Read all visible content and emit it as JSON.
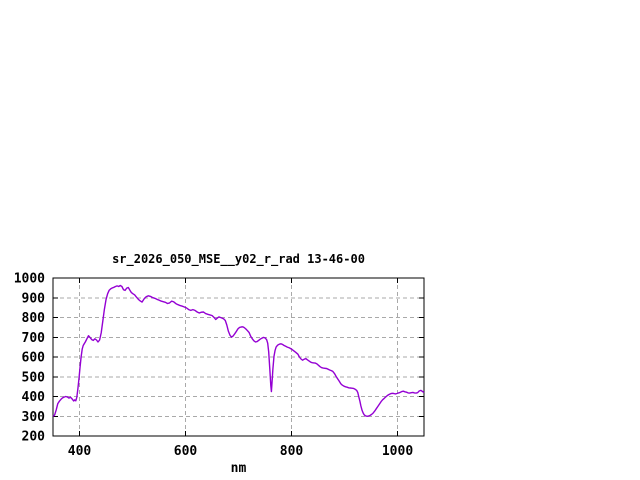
{
  "window": {
    "background": "#ffffff"
  },
  "chart_data": {
    "type": "line",
    "title": "sr_2026_050_MSE__y02_r_rad 13-46-00",
    "xlabel": "nm",
    "ylabel": "",
    "xlim": [
      350,
      1050
    ],
    "ylim": [
      200,
      1000
    ],
    "x_ticks": [
      400,
      600,
      800,
      1000
    ],
    "y_ticks": [
      200,
      300,
      400,
      500,
      600,
      700,
      800,
      900,
      1000
    ],
    "grid": true,
    "legend": "none",
    "line_color": "#9400d3",
    "grid_color": "#a9a9a9",
    "border_color": "#000000",
    "text_color": "#000000",
    "series": [
      {
        "points": [
          [
            350,
            300
          ],
          [
            353,
            306
          ],
          [
            356,
            332
          ],
          [
            359,
            364
          ],
          [
            362,
            376
          ],
          [
            365,
            386
          ],
          [
            368,
            393
          ],
          [
            371,
            397
          ],
          [
            374,
            400
          ],
          [
            377,
            398
          ],
          [
            380,
            392
          ],
          [
            383,
            396
          ],
          [
            386,
            388
          ],
          [
            389,
            377
          ],
          [
            391,
            383
          ],
          [
            393,
            378
          ],
          [
            395,
            396
          ],
          [
            397,
            440
          ],
          [
            399,
            492
          ],
          [
            401,
            546
          ],
          [
            403,
            600
          ],
          [
            405,
            640
          ],
          [
            407,
            658
          ],
          [
            409,
            668
          ],
          [
            411,
            676
          ],
          [
            414,
            692
          ],
          [
            417,
            708
          ],
          [
            420,
            698
          ],
          [
            423,
            688
          ],
          [
            426,
            684
          ],
          [
            429,
            692
          ],
          [
            432,
            686
          ],
          [
            435,
            676
          ],
          [
            438,
            686
          ],
          [
            441,
            722
          ],
          [
            444,
            782
          ],
          [
            447,
            842
          ],
          [
            450,
            890
          ],
          [
            453,
            920
          ],
          [
            456,
            938
          ],
          [
            459,
            946
          ],
          [
            462,
            950
          ],
          [
            465,
            953
          ],
          [
            468,
            957
          ],
          [
            471,
            960
          ],
          [
            474,
            957
          ],
          [
            477,
            962
          ],
          [
            480,
            957
          ],
          [
            483,
            941
          ],
          [
            486,
            937
          ],
          [
            489,
            949
          ],
          [
            492,
            952
          ],
          [
            495,
            938
          ],
          [
            498,
            926
          ],
          [
            501,
            920
          ],
          [
            504,
            915
          ],
          [
            507,
            905
          ],
          [
            510,
            895
          ],
          [
            514,
            885
          ],
          [
            518,
            878
          ],
          [
            522,
            895
          ],
          [
            526,
            906
          ],
          [
            530,
            910
          ],
          [
            534,
            907
          ],
          [
            538,
            901
          ],
          [
            542,
            897
          ],
          [
            546,
            892
          ],
          [
            550,
            888
          ],
          [
            554,
            883
          ],
          [
            558,
            880
          ],
          [
            562,
            877
          ],
          [
            566,
            871
          ],
          [
            570,
            874
          ],
          [
            574,
            883
          ],
          [
            578,
            879
          ],
          [
            582,
            870
          ],
          [
            586,
            865
          ],
          [
            590,
            860
          ],
          [
            594,
            857
          ],
          [
            598,
            853
          ],
          [
            602,
            848
          ],
          [
            606,
            840
          ],
          [
            610,
            836
          ],
          [
            614,
            840
          ],
          [
            618,
            836
          ],
          [
            622,
            828
          ],
          [
            626,
            823
          ],
          [
            630,
            827
          ],
          [
            634,
            828
          ],
          [
            638,
            820
          ],
          [
            642,
            816
          ],
          [
            646,
            813
          ],
          [
            650,
            810
          ],
          [
            654,
            800
          ],
          [
            657,
            790
          ],
          [
            660,
            797
          ],
          [
            663,
            803
          ],
          [
            666,
            800
          ],
          [
            669,
            797
          ],
          [
            672,
            793
          ],
          [
            675,
            785
          ],
          [
            678,
            762
          ],
          [
            681,
            730
          ],
          [
            684,
            710
          ],
          [
            687,
            701
          ],
          [
            690,
            707
          ],
          [
            693,
            718
          ],
          [
            696,
            730
          ],
          [
            699,
            743
          ],
          [
            702,
            750
          ],
          [
            705,
            752
          ],
          [
            708,
            753
          ],
          [
            711,
            749
          ],
          [
            714,
            742
          ],
          [
            717,
            733
          ],
          [
            720,
            724
          ],
          [
            723,
            705
          ],
          [
            726,
            692
          ],
          [
            729,
            682
          ],
          [
            732,
            676
          ],
          [
            735,
            678
          ],
          [
            738,
            684
          ],
          [
            741,
            690
          ],
          [
            744,
            695
          ],
          [
            747,
            699
          ],
          [
            750,
            697
          ],
          [
            753,
            688
          ],
          [
            755,
            670
          ],
          [
            757,
            626
          ],
          [
            759,
            540
          ],
          [
            761,
            455
          ],
          [
            762,
            425
          ],
          [
            763,
            462
          ],
          [
            765,
            540
          ],
          [
            767,
            604
          ],
          [
            769,
            634
          ],
          [
            771,
            650
          ],
          [
            774,
            660
          ],
          [
            777,
            665
          ],
          [
            780,
            667
          ],
          [
            783,
            664
          ],
          [
            786,
            658
          ],
          [
            789,
            654
          ],
          [
            792,
            650
          ],
          [
            796,
            646
          ],
          [
            800,
            640
          ],
          [
            804,
            632
          ],
          [
            808,
            624
          ],
          [
            812,
            614
          ],
          [
            815,
            600
          ],
          [
            818,
            590
          ],
          [
            821,
            584
          ],
          [
            824,
            589
          ],
          [
            827,
            592
          ],
          [
            830,
            586
          ],
          [
            833,
            580
          ],
          [
            836,
            574
          ],
          [
            839,
            571
          ],
          [
            842,
            570
          ],
          [
            845,
            569
          ],
          [
            848,
            565
          ],
          [
            851,
            558
          ],
          [
            854,
            551
          ],
          [
            857,
            546
          ],
          [
            860,
            544
          ],
          [
            863,
            543
          ],
          [
            866,
            542
          ],
          [
            869,
            538
          ],
          [
            872,
            534
          ],
          [
            875,
            531
          ],
          [
            878,
            527
          ],
          [
            881,
            517
          ],
          [
            884,
            503
          ],
          [
            887,
            490
          ],
          [
            890,
            478
          ],
          [
            893,
            465
          ],
          [
            896,
            457
          ],
          [
            899,
            452
          ],
          [
            902,
            449
          ],
          [
            905,
            447
          ],
          [
            908,
            444
          ],
          [
            911,
            443
          ],
          [
            914,
            442
          ],
          [
            917,
            441
          ],
          [
            920,
            437
          ],
          [
            923,
            431
          ],
          [
            925,
            420
          ],
          [
            927,
            398
          ],
          [
            929,
            376
          ],
          [
            931,
            352
          ],
          [
            933,
            331
          ],
          [
            935,
            317
          ],
          [
            937,
            308
          ],
          [
            939,
            303
          ],
          [
            941,
            301
          ],
          [
            943,
            300
          ],
          [
            945,
            301
          ],
          [
            948,
            304
          ],
          [
            951,
            309
          ],
          [
            954,
            316
          ],
          [
            957,
            326
          ],
          [
            960,
            338
          ],
          [
            963,
            350
          ],
          [
            966,
            362
          ],
          [
            969,
            374
          ],
          [
            972,
            384
          ],
          [
            975,
            391
          ],
          [
            978,
            398
          ],
          [
            981,
            405
          ],
          [
            984,
            410
          ],
          [
            987,
            414
          ],
          [
            990,
            416
          ],
          [
            993,
            415
          ],
          [
            996,
            413
          ],
          [
            999,
            415
          ],
          [
            1002,
            418
          ],
          [
            1005,
            421
          ],
          [
            1008,
            425
          ],
          [
            1011,
            427
          ],
          [
            1014,
            424
          ],
          [
            1017,
            422
          ],
          [
            1020,
            418
          ],
          [
            1023,
            417
          ],
          [
            1026,
            419
          ],
          [
            1029,
            421
          ],
          [
            1032,
            418
          ],
          [
            1035,
            417
          ],
          [
            1038,
            419
          ],
          [
            1041,
            428
          ],
          [
            1044,
            431
          ],
          [
            1047,
            426
          ],
          [
            1050,
            420
          ]
        ]
      }
    ]
  }
}
